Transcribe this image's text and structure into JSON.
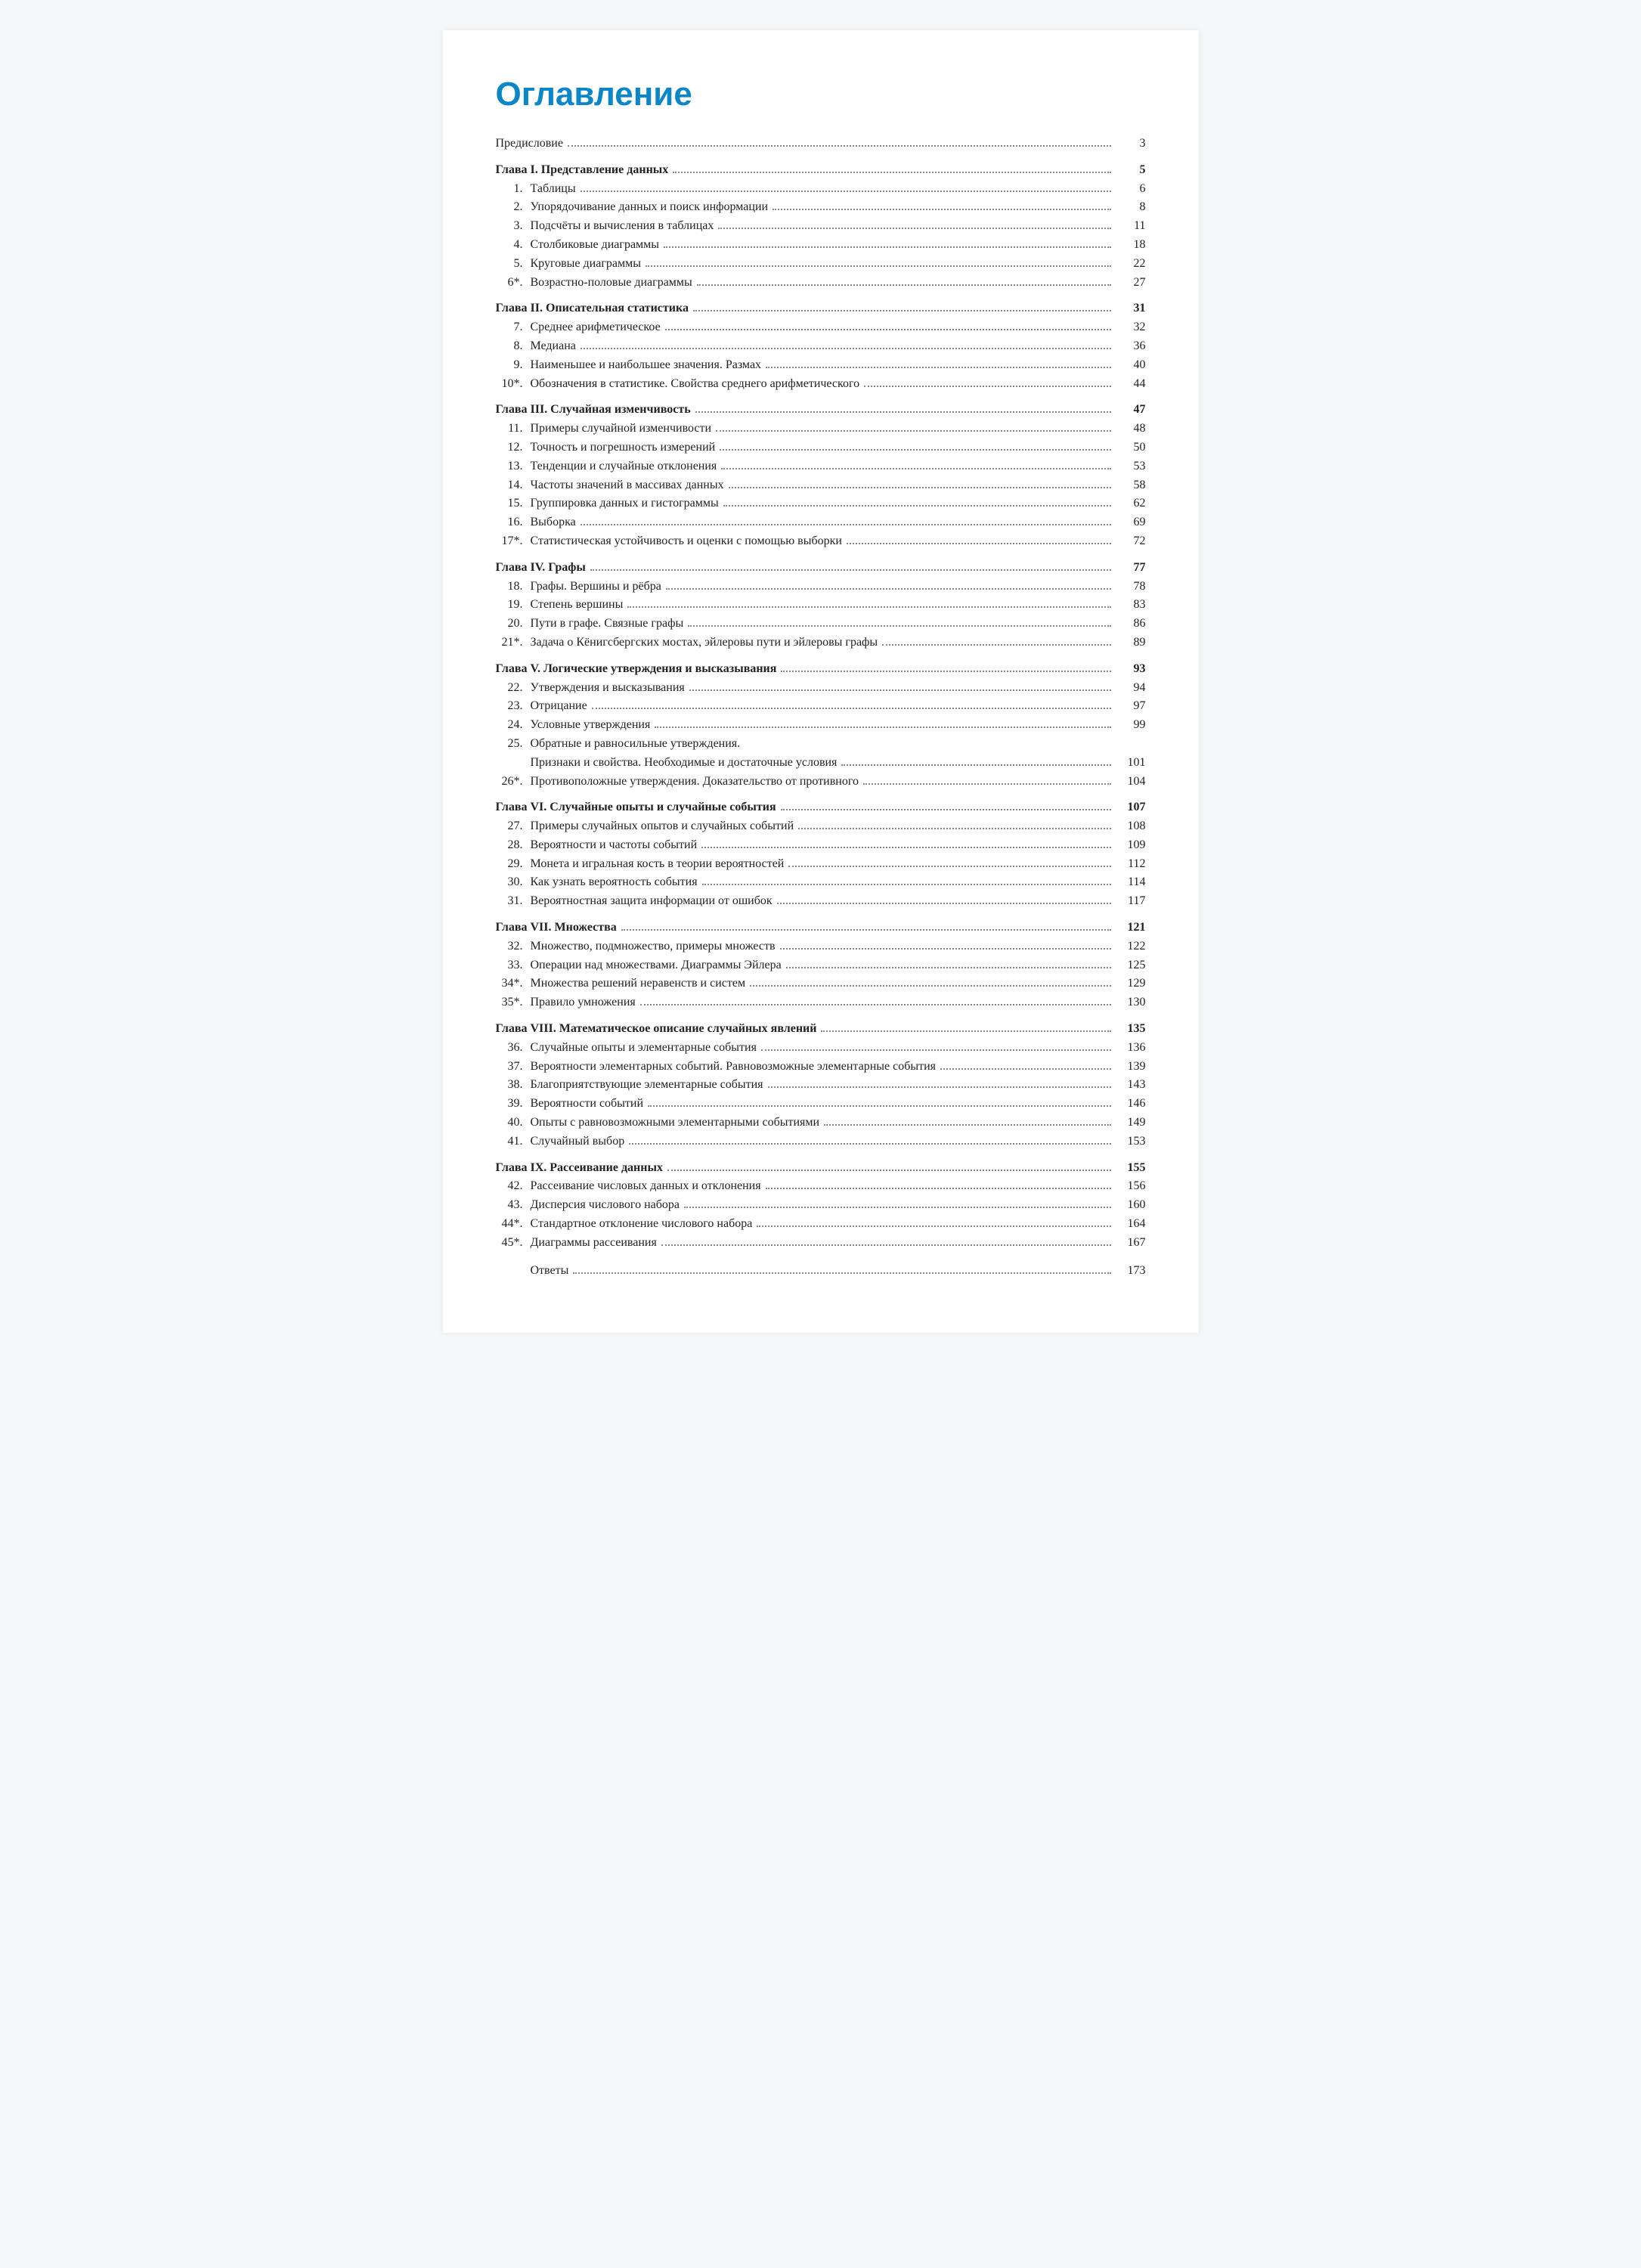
{
  "title": "Оглавление",
  "front": {
    "label": "Предисловие",
    "page": "3"
  },
  "chapters": [
    {
      "title": "Глава I. Представление данных",
      "page": "5",
      "items": [
        {
          "num": "1.",
          "label": "Таблицы",
          "page": "6"
        },
        {
          "num": "2.",
          "label": "Упорядочивание данных и поиск информации",
          "page": "8"
        },
        {
          "num": "3.",
          "label": "Подсчёты и вычисления в таблицах",
          "page": "11"
        },
        {
          "num": "4.",
          "label": "Столбиковые диаграммы",
          "page": "18"
        },
        {
          "num": "5.",
          "label": "Круговые диаграммы",
          "page": "22"
        },
        {
          "num": "6*.",
          "label": "Возрастно-половые диаграммы",
          "page": "27"
        }
      ]
    },
    {
      "title": "Глава II. Описательная статистика",
      "page": "31",
      "items": [
        {
          "num": "7.",
          "label": "Среднее арифметическое",
          "page": "32"
        },
        {
          "num": "8.",
          "label": "Медиана",
          "page": "36"
        },
        {
          "num": "9.",
          "label": "Наименьшее и наибольшее значения. Размах",
          "page": "40"
        },
        {
          "num": "10*.",
          "label": "Обозначения в статистике. Свойства среднего арифметического",
          "page": "44"
        }
      ]
    },
    {
      "title": "Глава III. Случайная изменчивость",
      "page": "47",
      "items": [
        {
          "num": "11.",
          "label": "Примеры случайной изменчивости",
          "page": "48"
        },
        {
          "num": "12.",
          "label": "Точность и погрешность измерений",
          "page": "50"
        },
        {
          "num": "13.",
          "label": "Тенденции и случайные отклонения",
          "page": "53"
        },
        {
          "num": "14.",
          "label": "Частоты значений в массивах данных",
          "page": "58"
        },
        {
          "num": "15.",
          "label": "Группировка данных и гистограммы",
          "page": "62"
        },
        {
          "num": "16.",
          "label": "Выборка",
          "page": "69"
        },
        {
          "num": "17*.",
          "label": "Статистическая устойчивость и оценки с помощью выборки",
          "page": "72"
        }
      ]
    },
    {
      "title": "Глава IV. Графы",
      "page": "77",
      "items": [
        {
          "num": "18.",
          "label": "Графы. Вершины и рёбра",
          "page": "78"
        },
        {
          "num": "19.",
          "label": "Степень вершины",
          "page": "83"
        },
        {
          "num": "20.",
          "label": "Пути в графе. Связные графы",
          "page": "86"
        },
        {
          "num": "21*.",
          "label": "Задача о Кёнигсбергских мостах, эйлеровы пути и эйлеровы графы",
          "page": "89"
        }
      ]
    },
    {
      "title": "Глава V. Логические утверждения и высказывания",
      "page": "93",
      "items": [
        {
          "num": "22.",
          "label": "Утверждения и высказывания",
          "page": "94"
        },
        {
          "num": "23.",
          "label": "Отрицание",
          "page": "97"
        },
        {
          "num": "24.",
          "label": "Условные утверждения",
          "page": "99"
        },
        {
          "num": "25.",
          "label": "Обратные и равносильные утверждения.",
          "label2": "Признаки и свойства. Необходимые и достаточные условия",
          "page": "101",
          "multiline": true
        },
        {
          "num": "26*.",
          "label": "Противоположные утверждения. Доказательство от противного",
          "page": "104"
        }
      ]
    },
    {
      "title": "Глава VI. Случайные опыты и случайные события",
      "page": "107",
      "items": [
        {
          "num": "27.",
          "label": "Примеры случайных опытов и случайных событий",
          "page": "108"
        },
        {
          "num": "28.",
          "label": "Вероятности и частоты событий",
          "page": "109"
        },
        {
          "num": "29.",
          "label": "Монета и игральная кость в теории вероятностей",
          "page": "112"
        },
        {
          "num": "30.",
          "label": "Как узнать вероятность события",
          "page": "114"
        },
        {
          "num": "31.",
          "label": "Вероятностная защита информации от ошибок",
          "page": "117"
        }
      ]
    },
    {
      "title": "Глава VII. Множества",
      "page": "121",
      "items": [
        {
          "num": "32.",
          "label": "Множество, подмножество, примеры множеств",
          "page": "122"
        },
        {
          "num": "33.",
          "label": "Операции над множествами. Диаграммы Эйлера",
          "page": "125"
        },
        {
          "num": "34*.",
          "label": "Множества решений неравенств и систем",
          "page": "129"
        },
        {
          "num": "35*.",
          "label": "Правило умножения",
          "page": "130"
        }
      ]
    },
    {
      "title": "Глава VIII. Математическое описание случайных явлений",
      "page": "135",
      "items": [
        {
          "num": "36.",
          "label": "Случайные опыты и элементарные события",
          "page": "136"
        },
        {
          "num": "37.",
          "label": "Вероятности элементарных событий. Равновозможные элементарные события",
          "page": "139",
          "wrap": true
        },
        {
          "num": "38.",
          "label": "Благоприятствующие элементарные события",
          "page": "143"
        },
        {
          "num": "39.",
          "label": "Вероятности событий",
          "page": "146"
        },
        {
          "num": "40.",
          "label": "Опыты с равновозможными элементарными событиями",
          "page": "149"
        },
        {
          "num": "41.",
          "label": "Случайный выбор",
          "page": "153"
        }
      ]
    },
    {
      "title": "Глава IX. Рассеивание данных",
      "page": "155",
      "items": [
        {
          "num": "42.",
          "label": "Рассеивание числовых данных и отклонения",
          "page": "156"
        },
        {
          "num": "43.",
          "label": "Дисперсия числового набора",
          "page": "160"
        },
        {
          "num": "44*.",
          "label": "Стандартное отклонение числового набора",
          "page": "164"
        },
        {
          "num": "45*.",
          "label": "Диаграммы рассеивания",
          "page": "167"
        }
      ]
    }
  ],
  "answers": {
    "label": "Ответы",
    "page": "173"
  }
}
